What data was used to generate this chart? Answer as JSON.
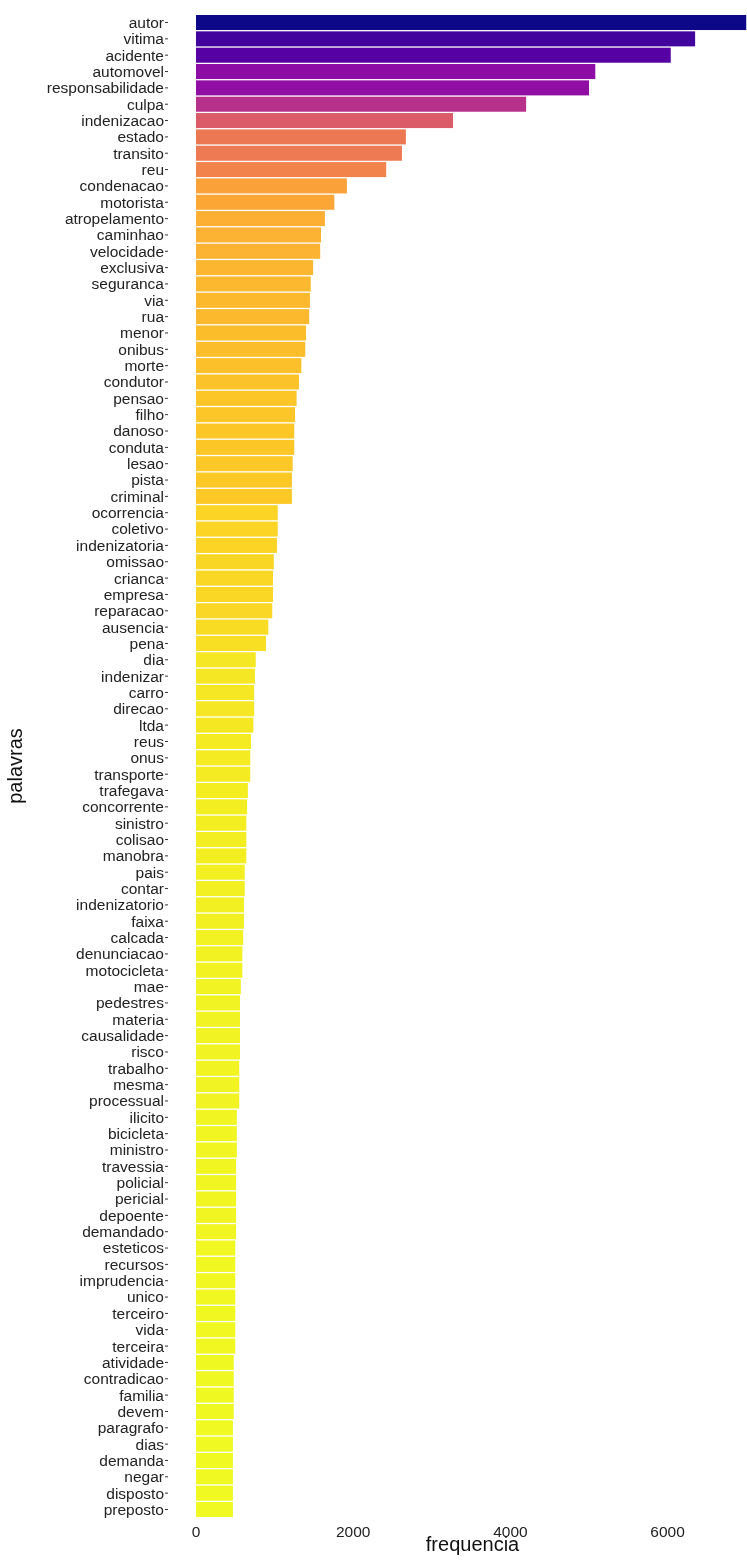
{
  "chart_data": {
    "type": "bar",
    "orientation": "horizontal",
    "xlabel": "frequencia",
    "ylabel": "palavras",
    "categories": [
      "autor",
      "vitima",
      "acidente",
      "automovel",
      "responsabilidade",
      "culpa",
      "indenizacao",
      "estado",
      "transito",
      "reu",
      "condenacao",
      "motorista",
      "atropelamento",
      "caminhao",
      "velocidade",
      "exclusiva",
      "seguranca",
      "via",
      "rua",
      "menor",
      "onibus",
      "morte",
      "condutor",
      "pensao",
      "filho",
      "danoso",
      "conduta",
      "lesao",
      "pista",
      "criminal",
      "ocorrencia",
      "coletivo",
      "indenizatoria",
      "omissao",
      "crianca",
      "empresa",
      "reparacao",
      "ausencia",
      "pena",
      "dia",
      "indenizar",
      "carro",
      "direcao",
      "ltda",
      "reus",
      "onus",
      "transporte",
      "trafegava",
      "concorrente",
      "sinistro",
      "colisao",
      "manobra",
      "pais",
      "contar",
      "indenizatorio",
      "faixa",
      "calcada",
      "denunciacao",
      "motocicleta",
      "mae",
      "pedestres",
      "materia",
      "causalidade",
      "risco",
      "trabalho",
      "mesma",
      "processual",
      "ilicito",
      "bicicleta",
      "ministro",
      "travessia",
      "policial",
      "pericial",
      "depoente",
      "demandado",
      "esteticos",
      "recursos",
      "imprudencia",
      "unico",
      "terceiro",
      "vida",
      "terceira",
      "atividade",
      "contradicao",
      "familia",
      "devem",
      "paragrafo",
      "dias",
      "demanda",
      "negar",
      "disposto",
      "preposto"
    ],
    "values": [
      7000,
      6350,
      6040,
      5080,
      5000,
      4200,
      3270,
      2670,
      2620,
      2420,
      1920,
      1760,
      1640,
      1590,
      1580,
      1490,
      1460,
      1450,
      1440,
      1400,
      1390,
      1340,
      1310,
      1280,
      1260,
      1250,
      1250,
      1230,
      1220,
      1220,
      1040,
      1040,
      1030,
      990,
      980,
      980,
      970,
      920,
      890,
      760,
      750,
      740,
      740,
      730,
      700,
      690,
      690,
      660,
      650,
      640,
      640,
      640,
      620,
      620,
      610,
      610,
      600,
      590,
      590,
      570,
      560,
      560,
      560,
      560,
      550,
      550,
      550,
      520,
      520,
      520,
      510,
      510,
      510,
      510,
      510,
      500,
      500,
      500,
      500,
      500,
      500,
      500,
      480,
      480,
      480,
      480,
      470,
      470,
      470,
      470,
      470,
      470
    ],
    "colors": [
      "#0d0887",
      "#41049d",
      "#5601a3",
      "#8d0ca5",
      "#900ea3",
      "#b7308b",
      "#db5c68",
      "#ec7853",
      "#ed7a52",
      "#f2844b",
      "#faa13a",
      "#fca636",
      "#fcaf33",
      "#fcb232",
      "#fcb232",
      "#fcb62f",
      "#fcb82f",
      "#fcb92e",
      "#fcb92e",
      "#fcbd2b",
      "#fcbd2b",
      "#fcc12a",
      "#fcc229",
      "#fcc528",
      "#fcc628",
      "#fcc627",
      "#fcc627",
      "#fcc827",
      "#fcc826",
      "#fcc826",
      "#fbd425",
      "#fbd425",
      "#fbd425",
      "#fad624",
      "#fad724",
      "#fad724",
      "#fad724",
      "#f8dc24",
      "#f8df24",
      "#f5e723",
      "#f5e723",
      "#f5e723",
      "#f5e723",
      "#f5e823",
      "#f4eb22",
      "#f4eb22",
      "#f4eb22",
      "#f3ed22",
      "#f3ee22",
      "#f3ee22",
      "#f3ee22",
      "#f3ee22",
      "#f2f022",
      "#f2f022",
      "#f2f022",
      "#f2f022",
      "#f2f122",
      "#f2f122",
      "#f2f122",
      "#f1f322",
      "#f1f322",
      "#f1f322",
      "#f1f322",
      "#f1f322",
      "#f1f322",
      "#f1f322",
      "#f1f322",
      "#f1f622",
      "#f1f622",
      "#f1f622",
      "#f1f622",
      "#f1f622",
      "#f1f622",
      "#f1f622",
      "#f1f622",
      "#f0f721",
      "#f0f721",
      "#f0f721",
      "#f0f721",
      "#f0f721",
      "#f0f721",
      "#f0f721",
      "#f0f821",
      "#f0f821",
      "#f0f821",
      "#f0f821",
      "#f0f921",
      "#f0f921",
      "#f0f921",
      "#f0f921",
      "#f0f921",
      "#f0f921"
    ],
    "xlim": [
      0,
      7010
    ],
    "xticks": [
      0,
      2000,
      4000,
      6000
    ]
  }
}
